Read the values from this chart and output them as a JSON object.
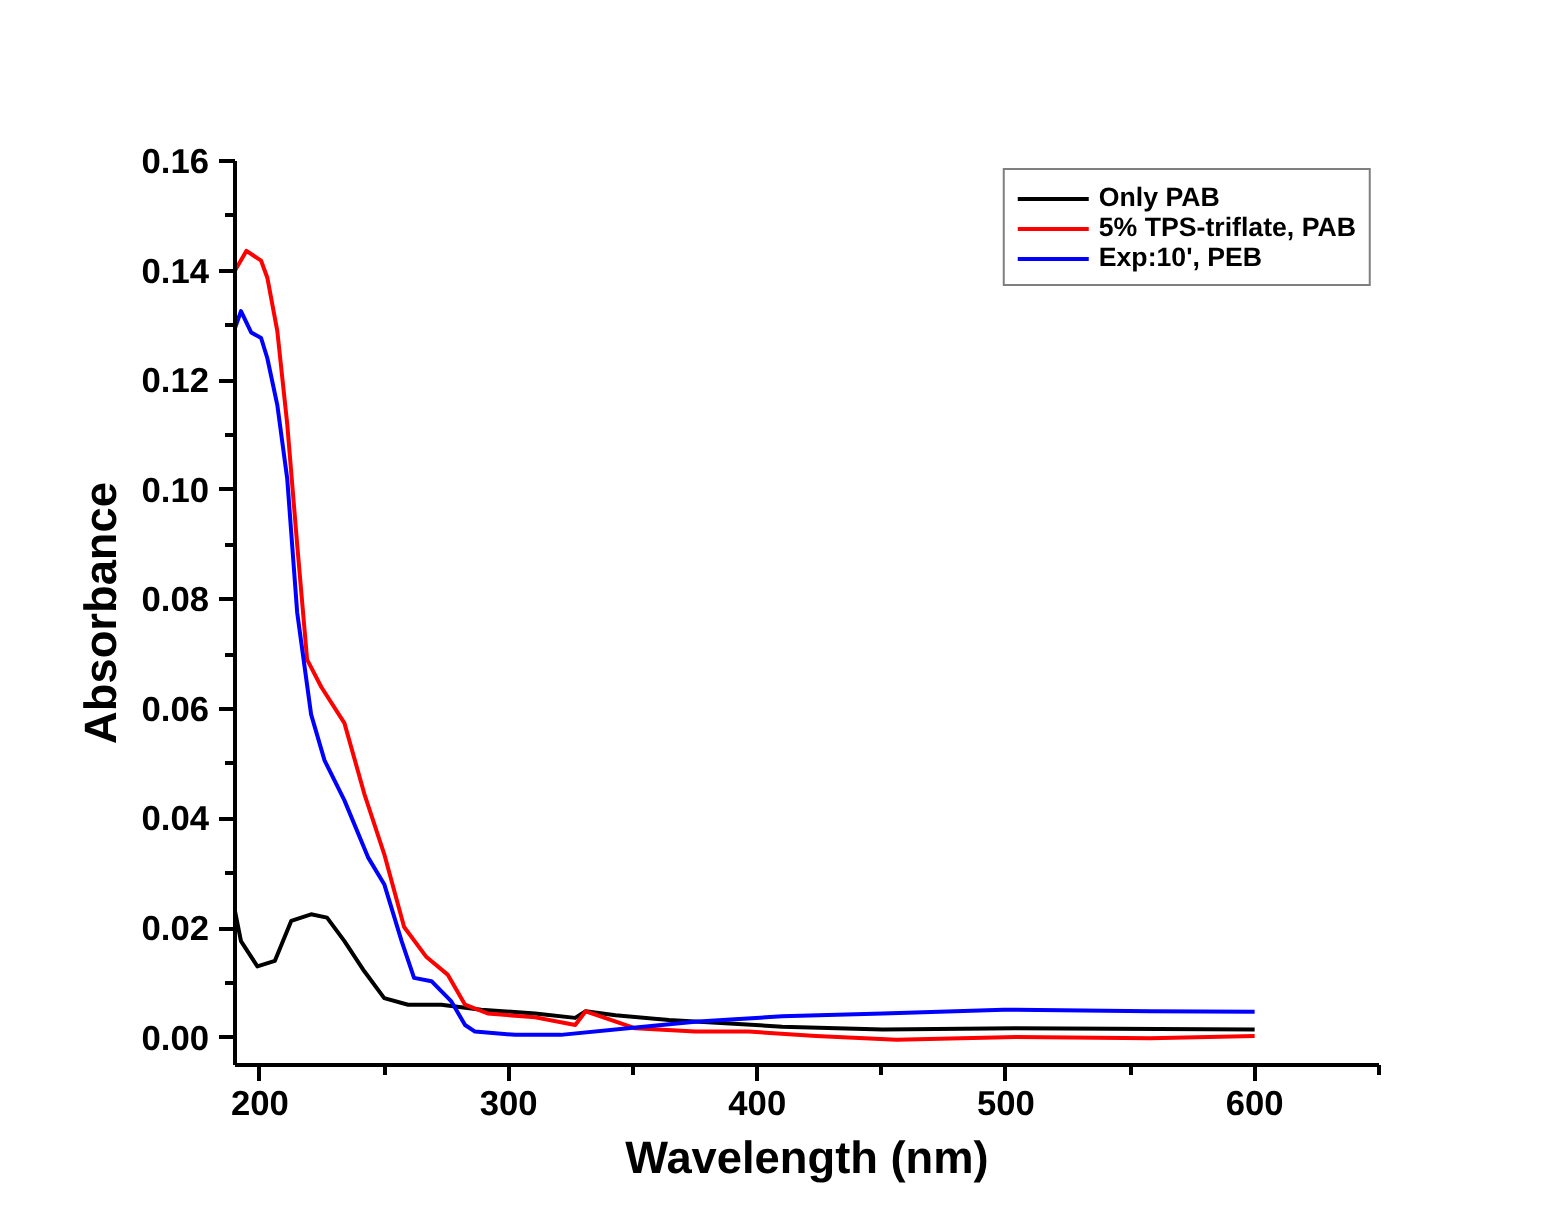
{
  "chart_data": {
    "type": "line",
    "xlabel": "Wavelength (nm)",
    "ylabel": "Absorbance",
    "xlim": [
      190,
      650
    ],
    "xticks": [
      200,
      300,
      400,
      500,
      600
    ],
    "ylim": [
      -0.005,
      0.16
    ],
    "yticks": [
      {
        "value": 0,
        "label": "0.00"
      },
      {
        "value": 0.02,
        "label": "0.02"
      },
      {
        "value": 0.04,
        "label": "0.04"
      },
      {
        "value": 0.06,
        "label": "0.06"
      },
      {
        "value": 0.08,
        "label": "0.08"
      },
      {
        "value": 0.1,
        "label": "0.10"
      },
      {
        "value": 0.12,
        "label": "0.12"
      },
      {
        "value": 0.14,
        "label": "0.14"
      },
      {
        "value": 0.16,
        "label": "0.16"
      }
    ],
    "grid": false,
    "legend": "top right",
    "marker": "none",
    "line_style": "solid",
    "series": [
      {
        "name": "Only PAB",
        "color": "#000000",
        "x": [
          190,
          192.4,
          199,
          206,
          212.6,
          220.6,
          227,
          234,
          242,
          250,
          259.6,
          273,
          289,
          310.7,
          326.8,
          331,
          343,
          364.5,
          410,
          450.5,
          504,
          600
        ],
        "values": [
          0.0231,
          0.0176,
          0.013,
          0.014,
          0.0213,
          0.0225,
          0.0219,
          0.0176,
          0.0121,
          0.0072,
          0.006,
          0.006,
          0.0051,
          0.0044,
          0.0036,
          0.0048,
          0.0041,
          0.0032,
          0.002,
          0.0015,
          0.0017,
          0.0015
        ]
      },
      {
        "name": "5% TPS-triflate, PAB",
        "color": "#ff0000",
        "x": [
          190,
          194.6,
          200.5,
          203,
          207,
          211,
          215,
          219,
          224.7,
          234,
          242,
          250,
          258,
          267,
          275.5,
          282.5,
          291.6,
          310.7,
          326.8,
          331,
          351,
          375,
          396.5,
          423.6,
          456,
          504,
          558,
          600
        ],
        "values": [
          0.14,
          0.1436,
          0.1418,
          0.1387,
          0.129,
          0.112,
          0.09,
          0.069,
          0.064,
          0.0574,
          0.0445,
          0.0335,
          0.0202,
          0.0147,
          0.0115,
          0.006,
          0.0044,
          0.0037,
          0.0023,
          0.0048,
          0.0017,
          0.0011,
          0.0011,
          0.0003,
          -0.0004,
          0.0001,
          -0.0001,
          0.0003
        ]
      },
      {
        "name": "Exp:10', PEB",
        "color": "#0000ff",
        "x": [
          190,
          192.4,
          196.5,
          200.5,
          203,
          207,
          211,
          215,
          220.6,
          226,
          234,
          243.5,
          250,
          257,
          262,
          269,
          277,
          282.5,
          286.5,
          302.7,
          321,
          348,
          375,
          410,
          450.5,
          499,
          558,
          600
        ],
        "values": [
          0.1295,
          0.1326,
          0.1287,
          0.1277,
          0.124,
          0.1155,
          0.102,
          0.0776,
          0.059,
          0.0506,
          0.0433,
          0.0329,
          0.028,
          0.0176,
          0.0109,
          0.0103,
          0.0066,
          0.0023,
          0.0011,
          0.0005,
          0.0005,
          0.0017,
          0.0029,
          0.0039,
          0.0044,
          0.0051,
          0.0048,
          0.0047
        ]
      }
    ]
  }
}
